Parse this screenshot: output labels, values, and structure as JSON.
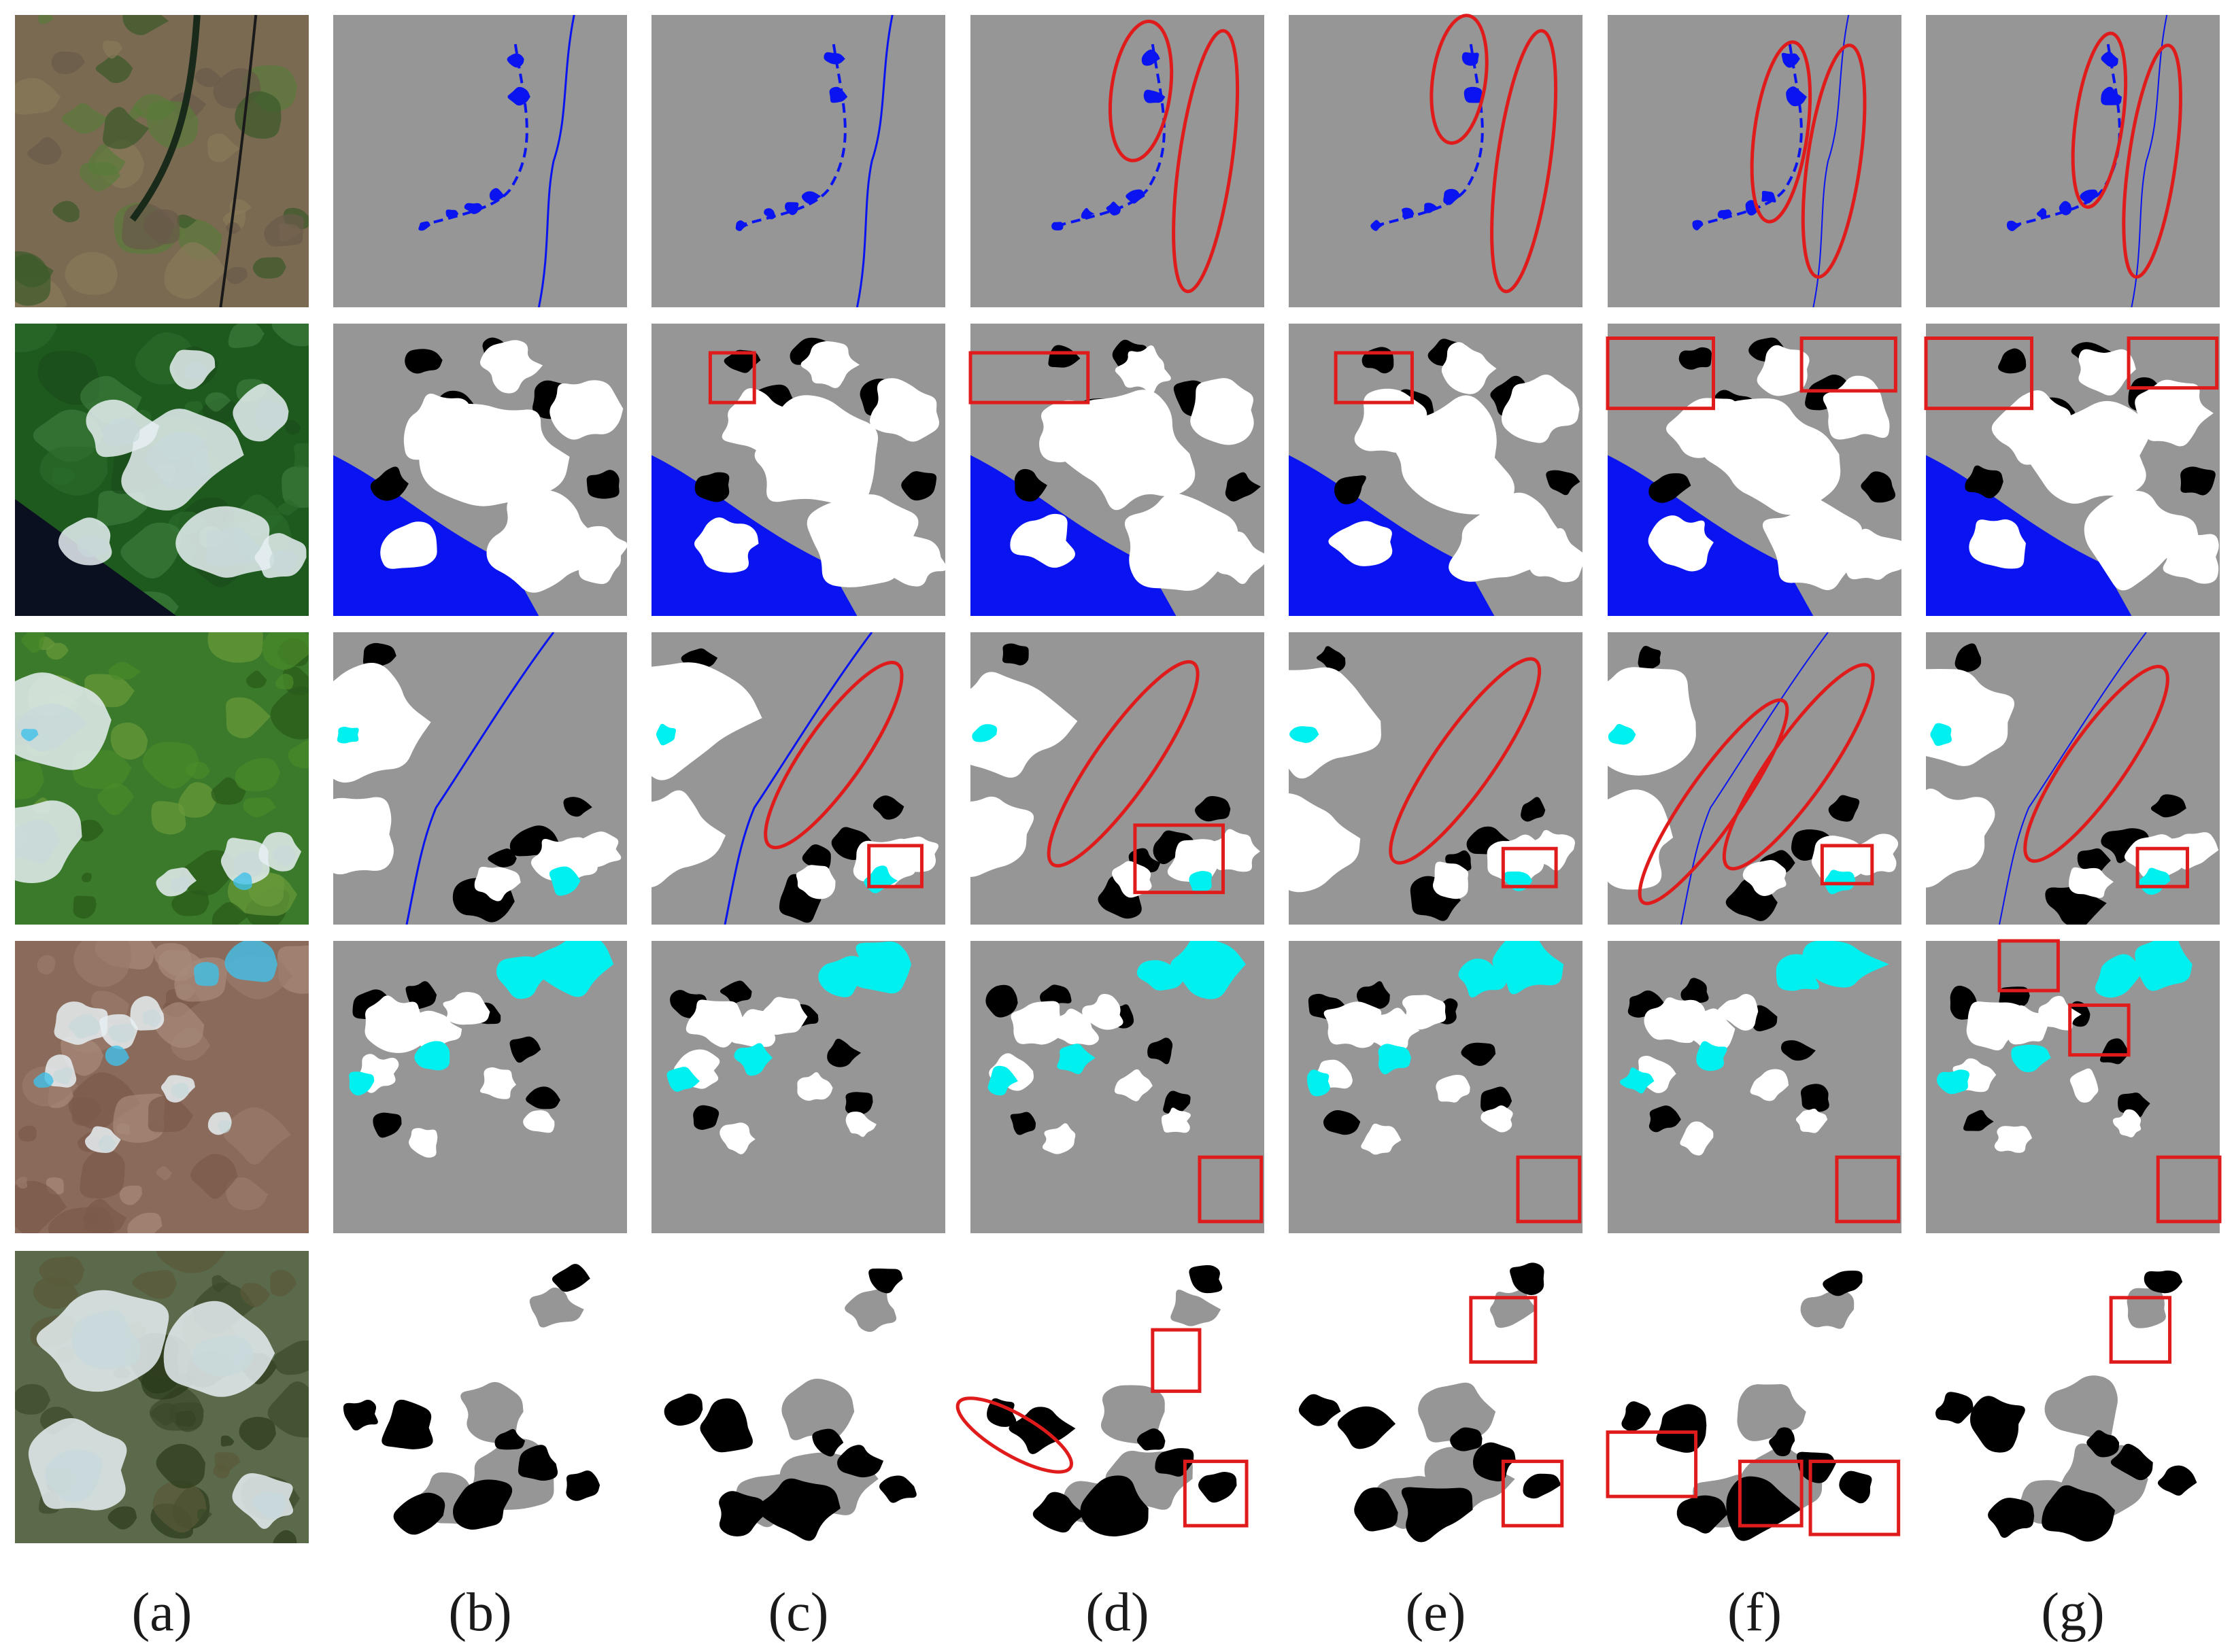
{
  "figure": {
    "column_labels": [
      "(a)",
      "(b)",
      "(c)",
      "(d)",
      "(e)",
      "(f)",
      "(g)"
    ],
    "rows": 5,
    "legend_colors": {
      "clear_land": "#969696",
      "cloud": "#ffffff",
      "cloud_shadow": "#000000",
      "water": "#0a14f0",
      "snow_ice": "#00f0f0",
      "highlight": "#e01b1b"
    },
    "row_inputs": [
      {
        "scene": "farmland-river",
        "base": "#7a6a52"
      },
      {
        "scene": "forest-coast-clouds",
        "base": "#1e5a1e"
      },
      {
        "scene": "mountain-valley-clouds-snow",
        "base": "#3a7a2a"
      },
      {
        "scene": "arid-mountains-clouds-snow",
        "base": "#8a6a5a"
      },
      {
        "scene": "dense-clouds-terrain",
        "base": "#5a6a4a"
      }
    ]
  }
}
